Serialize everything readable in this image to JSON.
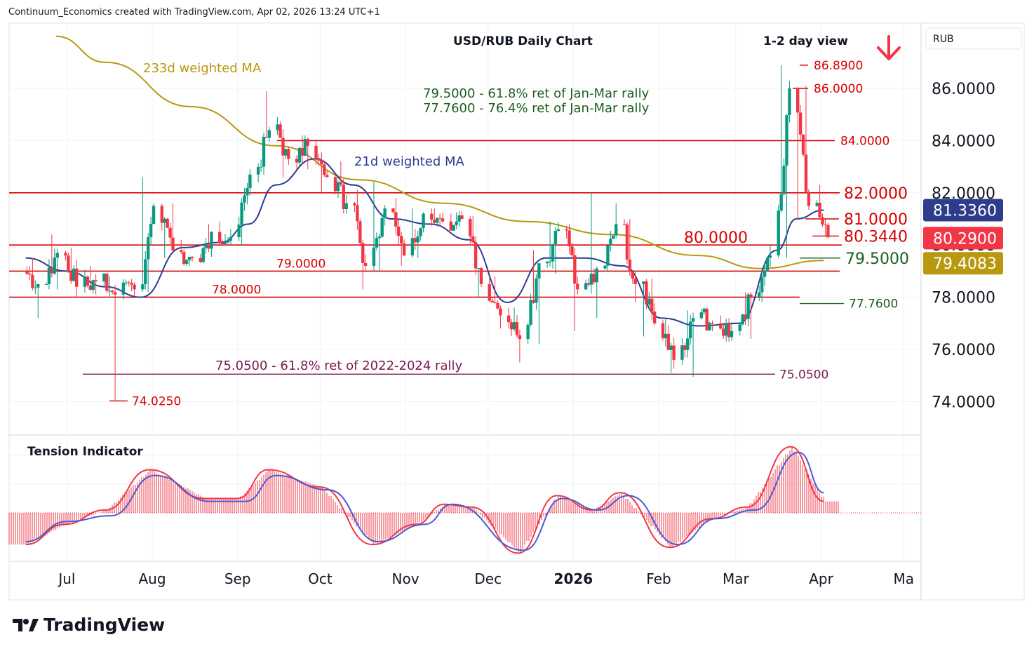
{
  "header": {
    "credit": "Continuum_Economics created with TradingView.com, Apr 02, 2026 13:24 UTC+1"
  },
  "brand": {
    "name": "TradingView",
    "logo_icon": "tradingview-logo-icon"
  },
  "chart_data": {
    "type": "candlestick",
    "title": "USD/RUB Daily Chart",
    "subtitle": "1-2 day view",
    "currency": "RUB",
    "direction_icon": "arrow-down-icon",
    "direction_color": "#f23645",
    "ylim": [
      72.6,
      87.9
    ],
    "y_ticks": [
      "86.0000",
      "84.0000",
      "82.0000",
      "80.0000",
      "78.0000",
      "76.0000",
      "74.0000"
    ],
    "x_ticks": [
      "Jul",
      "Aug",
      "Sep",
      "Oct",
      "Nov",
      "Dec",
      "2026",
      "Feb",
      "Mar",
      "Apr",
      "Ma"
    ],
    "grid": true,
    "colors": {
      "up": "#089981",
      "down": "#f23645",
      "ma21": "#2f3b8f",
      "ma233": "#b8980f",
      "levels": "#d80000",
      "fib_retrace": "#1b5e20",
      "fib_long": "#7b1a4f"
    },
    "price_badges": [
      {
        "label": "81.3360",
        "value": 81.336,
        "color": "#2e3c8c"
      },
      {
        "label": "80.2900",
        "value": 80.29,
        "color": "#f23645"
      },
      {
        "label": "79.4083",
        "value": 79.4083,
        "color": "#b8980f"
      }
    ],
    "horizontal_levels": [
      {
        "label": "84.0000",
        "value": 84.0
      },
      {
        "label": "82.0000",
        "value": 82.0
      },
      {
        "label": "80.0000",
        "value": 80.0
      },
      {
        "label": "79.0000",
        "value": 79.0
      },
      {
        "label": "78.0000",
        "value": 78.0
      }
    ],
    "level_marks": [
      {
        "label": "86.8900",
        "value": 86.89
      },
      {
        "label": "86.0000",
        "value": 86.0
      },
      {
        "label": "81.0000",
        "value": 81.0
      },
      {
        "label": "80.3440",
        "value": 80.344
      },
      {
        "label": "79.5000",
        "value": 79.5
      },
      {
        "label": "77.7600",
        "value": 77.76
      },
      {
        "label": "75.0500",
        "value": 75.05
      },
      {
        "label": "74.0250",
        "value": 74.025
      }
    ],
    "annotations": [
      {
        "text": "233d weighted MA"
      },
      {
        "text": "21d weighted MA"
      },
      {
        "text": "79.5000 - 61.8% ret of Jan-Mar rally"
      },
      {
        "text": "77.7600 - 76.4% ret of Jan-Mar rally"
      },
      {
        "text": "75.0500 - 61.8% ret of 2022-2024 rally"
      }
    ],
    "ohlc_weekly": [
      {
        "date": "2025-06-16",
        "open": 79.0,
        "high": 79.5,
        "low": 77.2,
        "close": 78.5
      },
      {
        "date": "2025-06-23",
        "open": 78.5,
        "high": 80.4,
        "low": 78.3,
        "close": 79.7
      },
      {
        "date": "2025-06-30",
        "open": 79.7,
        "high": 79.9,
        "low": 78.0,
        "close": 78.4
      },
      {
        "date": "2025-07-07",
        "open": 78.4,
        "high": 79.2,
        "low": 78.1,
        "close": 78.6
      },
      {
        "date": "2025-07-14",
        "open": 78.6,
        "high": 78.8,
        "low": 74.025,
        "close": 78.1
      },
      {
        "date": "2025-07-21",
        "open": 78.1,
        "high": 78.7,
        "low": 77.9,
        "close": 78.3
      },
      {
        "date": "2025-07-28",
        "open": 78.3,
        "high": 82.6,
        "low": 78.2,
        "close": 81.5
      },
      {
        "date": "2025-08-04",
        "open": 81.5,
        "high": 81.6,
        "low": 79.5,
        "close": 79.8
      },
      {
        "date": "2025-08-11",
        "open": 79.8,
        "high": 80.2,
        "low": 79.2,
        "close": 79.5
      },
      {
        "date": "2025-08-18",
        "open": 79.5,
        "high": 80.8,
        "low": 79.3,
        "close": 80.5
      },
      {
        "date": "2025-08-25",
        "open": 80.5,
        "high": 80.9,
        "low": 80.0,
        "close": 80.3
      },
      {
        "date": "2025-09-01",
        "open": 80.3,
        "high": 82.9,
        "low": 80.0,
        "close": 82.7
      },
      {
        "date": "2025-09-08",
        "open": 82.7,
        "high": 85.9,
        "low": 82.4,
        "close": 84.4
      },
      {
        "date": "2025-09-15",
        "open": 84.4,
        "high": 84.9,
        "low": 82.6,
        "close": 83.3
      },
      {
        "date": "2025-09-22",
        "open": 83.3,
        "high": 84.2,
        "low": 82.9,
        "close": 83.8
      },
      {
        "date": "2025-09-29",
        "open": 83.8,
        "high": 84.0,
        "low": 82.0,
        "close": 82.6
      },
      {
        "date": "2025-10-06",
        "open": 82.6,
        "high": 83.2,
        "low": 81.2,
        "close": 81.6
      },
      {
        "date": "2025-10-13",
        "open": 81.6,
        "high": 82.1,
        "low": 78.3,
        "close": 79.2
      },
      {
        "date": "2025-10-20",
        "open": 79.2,
        "high": 82.4,
        "low": 79.0,
        "close": 81.4
      },
      {
        "date": "2025-10-27",
        "open": 81.4,
        "high": 81.8,
        "low": 79.2,
        "close": 79.6
      },
      {
        "date": "2025-11-03",
        "open": 79.6,
        "high": 81.4,
        "low": 79.5,
        "close": 81.2
      },
      {
        "date": "2025-11-10",
        "open": 81.2,
        "high": 81.4,
        "low": 80.7,
        "close": 80.9
      },
      {
        "date": "2025-11-17",
        "open": 80.9,
        "high": 81.3,
        "low": 80.6,
        "close": 81.0
      },
      {
        "date": "2025-11-24",
        "open": 81.0,
        "high": 81.1,
        "low": 78.0,
        "close": 78.5
      },
      {
        "date": "2025-12-01",
        "open": 78.5,
        "high": 78.8,
        "low": 76.8,
        "close": 77.3
      },
      {
        "date": "2025-12-08",
        "open": 77.3,
        "high": 77.6,
        "low": 75.5,
        "close": 76.4
      },
      {
        "date": "2025-12-15",
        "open": 76.4,
        "high": 79.8,
        "low": 76.2,
        "close": 79.3
      },
      {
        "date": "2025-12-22",
        "open": 79.3,
        "high": 80.9,
        "low": 78.9,
        "close": 80.6
      },
      {
        "date": "2025-12-29",
        "open": 80.6,
        "high": 80.8,
        "low": 76.7,
        "close": 78.3
      },
      {
        "date": "2026-01-05",
        "open": 78.3,
        "high": 82.0,
        "low": 77.2,
        "close": 79.1
      },
      {
        "date": "2026-01-12",
        "open": 79.1,
        "high": 81.6,
        "low": 79.0,
        "close": 80.8
      },
      {
        "date": "2026-01-19",
        "open": 80.8,
        "high": 81.0,
        "low": 77.8,
        "close": 78.5
      },
      {
        "date": "2026-01-26",
        "open": 78.5,
        "high": 78.7,
        "low": 76.5,
        "close": 77.0
      },
      {
        "date": "2026-02-02",
        "open": 77.0,
        "high": 77.2,
        "low": 75.1,
        "close": 75.6
      },
      {
        "date": "2026-02-09",
        "open": 75.6,
        "high": 77.5,
        "low": 74.95,
        "close": 77.2
      },
      {
        "date": "2026-02-16",
        "open": 77.2,
        "high": 77.6,
        "low": 76.7,
        "close": 77.0
      },
      {
        "date": "2026-02-23",
        "open": 77.0,
        "high": 77.3,
        "low": 76.3,
        "close": 76.7
      },
      {
        "date": "2026-03-02",
        "open": 76.7,
        "high": 78.2,
        "low": 76.4,
        "close": 78.0
      },
      {
        "date": "2026-03-09",
        "open": 78.0,
        "high": 80.0,
        "low": 77.8,
        "close": 79.6
      },
      {
        "date": "2026-03-16",
        "open": 79.6,
        "high": 86.89,
        "low": 79.5,
        "close": 86.0
      },
      {
        "date": "2026-03-23",
        "open": 86.0,
        "high": 86.1,
        "low": 81.0,
        "close": 81.5
      },
      {
        "date": "2026-03-30",
        "open": 81.5,
        "high": 82.3,
        "low": 80.344,
        "close": 80.29
      }
    ],
    "ma21": [
      {
        "date": "2025-06-16",
        "value": 79.5
      },
      {
        "date": "2025-07-01",
        "value": 79.0
      },
      {
        "date": "2025-07-15",
        "value": 78.4
      },
      {
        "date": "2025-07-28",
        "value": 78.0
      },
      {
        "date": "2025-08-12",
        "value": 79.9
      },
      {
        "date": "2025-08-26",
        "value": 80.1
      },
      {
        "date": "2025-09-05",
        "value": 80.8
      },
      {
        "date": "2025-09-15",
        "value": 82.3
      },
      {
        "date": "2025-09-29",
        "value": 83.3
      },
      {
        "date": "2025-10-13",
        "value": 82.3
      },
      {
        "date": "2025-10-27",
        "value": 81.0
      },
      {
        "date": "2025-11-10",
        "value": 80.8
      },
      {
        "date": "2025-11-24",
        "value": 80.2
      },
      {
        "date": "2025-12-08",
        "value": 77.8
      },
      {
        "date": "2025-12-22",
        "value": 79.5
      },
      {
        "date": "2026-01-05",
        "value": 79.5
      },
      {
        "date": "2026-01-19",
        "value": 79.2
      },
      {
        "date": "2026-02-02",
        "value": 77.2
      },
      {
        "date": "2026-02-16",
        "value": 76.9
      },
      {
        "date": "2026-03-02",
        "value": 77.0
      },
      {
        "date": "2026-03-16",
        "value": 79.8
      },
      {
        "date": "2026-03-23",
        "value": 81.0
      },
      {
        "date": "2026-04-02",
        "value": 81.336
      }
    ],
    "ma233": [
      {
        "date": "2025-06-27",
        "value": 88.0
      },
      {
        "date": "2025-07-15",
        "value": 87.0
      },
      {
        "date": "2025-08-15",
        "value": 85.3
      },
      {
        "date": "2025-09-15",
        "value": 83.8
      },
      {
        "date": "2025-10-15",
        "value": 82.5
      },
      {
        "date": "2025-11-15",
        "value": 81.6
      },
      {
        "date": "2025-12-15",
        "value": 80.9
      },
      {
        "date": "2026-01-15",
        "value": 80.4
      },
      {
        "date": "2026-02-15",
        "value": 79.6
      },
      {
        "date": "2026-03-10",
        "value": 79.1
      },
      {
        "date": "2026-04-02",
        "value": 79.4083
      }
    ],
    "tension_indicator": {
      "title": "Tension Indicator",
      "histogram": [
        {
          "date": "2025-06-16",
          "value": -0.55
        },
        {
          "date": "2025-06-30",
          "value": -0.2
        },
        {
          "date": "2025-07-15",
          "value": 0.05
        },
        {
          "date": "2025-07-31",
          "value": 0.75
        },
        {
          "date": "2025-08-20",
          "value": 0.25
        },
        {
          "date": "2025-09-01",
          "value": 0.25
        },
        {
          "date": "2025-09-12",
          "value": 0.75
        },
        {
          "date": "2025-10-01",
          "value": 0.45
        },
        {
          "date": "2025-10-20",
          "value": -0.55
        },
        {
          "date": "2025-11-05",
          "value": -0.2
        },
        {
          "date": "2025-11-15",
          "value": 0.15
        },
        {
          "date": "2025-11-25",
          "value": 0.1
        },
        {
          "date": "2025-12-12",
          "value": -0.7
        },
        {
          "date": "2025-12-26",
          "value": 0.3
        },
        {
          "date": "2026-01-08",
          "value": 0.05
        },
        {
          "date": "2026-01-18",
          "value": 0.35
        },
        {
          "date": "2026-02-05",
          "value": -0.6
        },
        {
          "date": "2026-02-20",
          "value": -0.1
        },
        {
          "date": "2026-03-05",
          "value": 0.1
        },
        {
          "date": "2026-03-21",
          "value": 1.15
        },
        {
          "date": "2026-04-02",
          "value": 0.2
        }
      ],
      "signal": [
        {
          "date": "2025-06-16",
          "value": -0.5
        },
        {
          "date": "2025-07-01",
          "value": -0.15
        },
        {
          "date": "2025-07-17",
          "value": -0.05
        },
        {
          "date": "2025-08-02",
          "value": 0.65
        },
        {
          "date": "2025-08-22",
          "value": 0.2
        },
        {
          "date": "2025-09-04",
          "value": 0.2
        },
        {
          "date": "2025-09-15",
          "value": 0.65
        },
        {
          "date": "2025-10-04",
          "value": 0.4
        },
        {
          "date": "2025-10-22",
          "value": -0.5
        },
        {
          "date": "2025-11-08",
          "value": -0.2
        },
        {
          "date": "2025-11-18",
          "value": 0.15
        },
        {
          "date": "2025-12-14",
          "value": -0.65
        },
        {
          "date": "2025-12-28",
          "value": 0.25
        },
        {
          "date": "2026-01-10",
          "value": 0.05
        },
        {
          "date": "2026-01-21",
          "value": 0.3
        },
        {
          "date": "2026-02-08",
          "value": -0.55
        },
        {
          "date": "2026-02-22",
          "value": -0.1
        },
        {
          "date": "2026-03-08",
          "value": 0.05
        },
        {
          "date": "2026-03-24",
          "value": 1.05
        },
        {
          "date": "2026-04-02",
          "value": 0.35
        }
      ]
    }
  }
}
